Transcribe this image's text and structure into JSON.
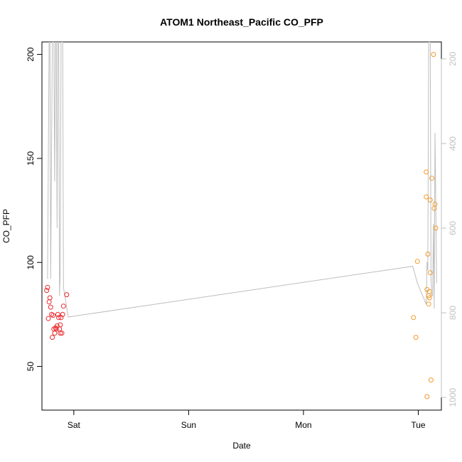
{
  "chart_data": {
    "type": "scatter",
    "title": "ATOM1 Northeast_Pacific CO_PFP",
    "xlabel": "Date",
    "ylabel": "CO_PFP",
    "x_ticks": [
      "Sat",
      "Sun",
      "Mon",
      "Tue"
    ],
    "y_ticks": [
      50,
      100,
      150,
      200
    ],
    "y2_ticks": [
      200,
      400,
      600,
      800,
      1000
    ],
    "xlim": [
      "Fri 17:20",
      "Tue 04:50"
    ],
    "ylim": [
      29,
      206
    ],
    "y2lim": [
      1030,
      160
    ],
    "y2_inverted": true,
    "grid": false,
    "colors": {
      "series1": "#e8282b",
      "series2": "#f39a2b",
      "line": "#bebebe",
      "axis": "#000000",
      "axis_right": "#c0c0c0"
    },
    "series": [
      {
        "points": [
          {
            "x": "Fri 18:20",
            "y": 86.5
          },
          {
            "x": "Fri 18:30",
            "y": 88
          },
          {
            "x": "Fri 18:40",
            "y": 73
          },
          {
            "x": "Fri 18:50",
            "y": 81
          },
          {
            "x": "Fri 19:00",
            "y": 83
          },
          {
            "x": "Fri 19:10",
            "y": 78.5
          },
          {
            "x": "Fri 19:20",
            "y": 75
          },
          {
            "x": "Fri 19:30",
            "y": 64
          },
          {
            "x": "Fri 19:40",
            "y": 74.5
          },
          {
            "x": "Fri 19:50",
            "y": 68
          },
          {
            "x": "Fri 20:00",
            "y": 66
          },
          {
            "x": "Fri 20:10",
            "y": 68.5
          },
          {
            "x": "Fri 20:20",
            "y": 68
          },
          {
            "x": "Fri 20:30",
            "y": 69.5
          },
          {
            "x": "Fri 20:40",
            "y": 75
          },
          {
            "x": "Fri 20:50",
            "y": 73.5
          },
          {
            "x": "Fri 21:00",
            "y": 68
          },
          {
            "x": "Fri 21:10",
            "y": 70
          },
          {
            "x": "Fri 21:10",
            "y": 66
          },
          {
            "x": "Fri 21:20",
            "y": 73.5
          },
          {
            "x": "Fri 21:30",
            "y": 66
          },
          {
            "x": "Fri 21:40",
            "y": 75
          },
          {
            "x": "Fri 21:50",
            "y": 79
          },
          {
            "x": "Fri 22:30",
            "y": 84.5
          }
        ]
      },
      {
        "points": [
          {
            "x": "Mon 23:00",
            "y": 73.5
          },
          {
            "x": "Mon 23:30",
            "y": 64
          },
          {
            "x": "Mon 23:50",
            "y": 100.5
          },
          {
            "x": "Tue 01:40",
            "y": 143.5
          },
          {
            "x": "Tue 01:40",
            "y": 131.5
          },
          {
            "x": "Tue 01:50",
            "y": 87
          },
          {
            "x": "Tue 01:50",
            "y": 35.5
          },
          {
            "x": "Tue 02:00",
            "y": 104
          },
          {
            "x": "Tue 02:10",
            "y": 84
          },
          {
            "x": "Tue 02:10",
            "y": 80
          },
          {
            "x": "Tue 02:20",
            "y": 86
          },
          {
            "x": "Tue 02:20",
            "y": 83
          },
          {
            "x": "Tue 02:30",
            "y": 95
          },
          {
            "x": "Tue 02:30",
            "y": 130
          },
          {
            "x": "Tue 02:40",
            "y": 43.5
          },
          {
            "x": "Tue 02:50",
            "y": 140.5
          },
          {
            "x": "Tue 03:10",
            "y": 200
          },
          {
            "x": "Tue 03:20",
            "y": 126
          },
          {
            "x": "Tue 03:30",
            "y": 128
          },
          {
            "x": "Tue 03:40",
            "y": 116.5
          }
        ]
      }
    ],
    "profile_line": {
      "axis": "right",
      "points": [
        {
          "x": "Fri 18:30",
          "y": 720
        },
        {
          "x": "Fri 18:50",
          "y": 160
        },
        {
          "x": "Fri 19:00",
          "y": 160
        },
        {
          "x": "Fri 19:10",
          "y": 720
        },
        {
          "x": "Fri 19:30",
          "y": 160
        },
        {
          "x": "Fri 19:50",
          "y": 160
        },
        {
          "x": "Fri 20:00",
          "y": 490
        },
        {
          "x": "Fri 20:10",
          "y": 160
        },
        {
          "x": "Fri 20:20",
          "y": 160
        },
        {
          "x": "Fri 20:30",
          "y": 600
        },
        {
          "x": "Fri 20:40",
          "y": 160
        },
        {
          "x": "Fri 20:50",
          "y": 160
        },
        {
          "x": "Fri 21:00",
          "y": 760
        },
        {
          "x": "Fri 21:10",
          "y": 700
        },
        {
          "x": "Fri 21:20",
          "y": 160
        },
        {
          "x": "Fri 21:40",
          "y": 160
        },
        {
          "x": "Fri 21:50",
          "y": 740
        },
        {
          "x": "Fri 22:50",
          "y": 810
        },
        {
          "x": "Mon 22:50",
          "y": 690
        },
        {
          "x": "Mon 23:50",
          "y": 730
        },
        {
          "x": "Tue 01:40",
          "y": 780
        },
        {
          "x": "Tue 01:50",
          "y": 680
        },
        {
          "x": "Tue 02:00",
          "y": 700
        },
        {
          "x": "Tue 02:10",
          "y": 160
        },
        {
          "x": "Tue 02:30",
          "y": 160
        },
        {
          "x": "Tue 02:40",
          "y": 720
        },
        {
          "x": "Tue 02:50",
          "y": 760
        },
        {
          "x": "Tue 03:00",
          "y": 760
        },
        {
          "x": "Tue 03:10",
          "y": 590
        },
        {
          "x": "Tue 03:20",
          "y": 790
        },
        {
          "x": "Tue 03:30",
          "y": 375
        },
        {
          "x": "Tue 03:50",
          "y": 730
        }
      ]
    }
  }
}
